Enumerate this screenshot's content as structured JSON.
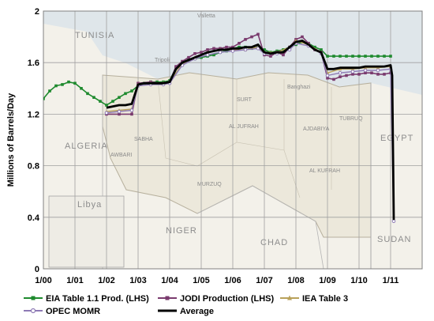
{
  "chart_data": {
    "type": "line",
    "title": "",
    "xlabel": "",
    "ylabel": "Millions of Barrels/Day",
    "x_tick_labels": [
      "1/00",
      "1/01",
      "1/02",
      "1/03",
      "1/04",
      "1/05",
      "1/06",
      "1/07",
      "1/08",
      "1/09",
      "1/10",
      "1/11"
    ],
    "y_tick_labels": [
      "0",
      "0.4",
      "0.8",
      "1.2",
      "1.6",
      "2"
    ],
    "xlim": [
      0,
      12
    ],
    "ylim": [
      0,
      2
    ],
    "grid": true,
    "legend_position": "bottom",
    "series": [
      {
        "name": "EIA Table 1.1 Prod. (LHS)",
        "color": "#1e8a2e",
        "marker": "square",
        "points": [
          [
            0,
            1.32
          ],
          [
            0.2,
            1.38
          ],
          [
            0.4,
            1.42
          ],
          [
            0.6,
            1.43
          ],
          [
            0.8,
            1.45
          ],
          [
            1.0,
            1.44
          ],
          [
            1.2,
            1.4
          ],
          [
            1.4,
            1.36
          ],
          [
            1.6,
            1.33
          ],
          [
            1.8,
            1.3
          ],
          [
            2.0,
            1.27
          ],
          [
            2.2,
            1.3
          ],
          [
            2.4,
            1.33
          ],
          [
            2.6,
            1.36
          ],
          [
            2.8,
            1.38
          ],
          [
            3.0,
            1.42
          ],
          [
            3.2,
            1.44
          ],
          [
            3.4,
            1.45
          ],
          [
            3.6,
            1.45
          ],
          [
            3.8,
            1.45
          ],
          [
            4.0,
            1.46
          ],
          [
            4.2,
            1.56
          ],
          [
            4.4,
            1.6
          ],
          [
            4.6,
            1.62
          ],
          [
            4.8,
            1.63
          ],
          [
            5.0,
            1.64
          ],
          [
            5.2,
            1.65
          ],
          [
            5.4,
            1.66
          ],
          [
            5.6,
            1.68
          ],
          [
            5.8,
            1.69
          ],
          [
            6.0,
            1.71
          ],
          [
            6.2,
            1.72
          ],
          [
            6.4,
            1.72
          ],
          [
            6.6,
            1.71
          ],
          [
            6.8,
            1.72
          ],
          [
            7.0,
            1.7
          ],
          [
            7.2,
            1.68
          ],
          [
            7.4,
            1.69
          ],
          [
            7.6,
            1.7
          ],
          [
            7.8,
            1.72
          ],
          [
            8.0,
            1.74
          ],
          [
            8.2,
            1.76
          ],
          [
            8.4,
            1.75
          ],
          [
            8.6,
            1.72
          ],
          [
            8.8,
            1.7
          ],
          [
            9.0,
            1.65
          ],
          [
            9.2,
            1.65
          ],
          [
            9.4,
            1.65
          ],
          [
            9.6,
            1.65
          ],
          [
            9.8,
            1.65
          ],
          [
            10.0,
            1.65
          ],
          [
            10.2,
            1.65
          ],
          [
            10.4,
            1.65
          ],
          [
            10.6,
            1.65
          ],
          [
            10.8,
            1.65
          ],
          [
            11.0,
            1.65
          ]
        ]
      },
      {
        "name": "JODI Production (LHS)",
        "color": "#7a3b6e",
        "marker": "square",
        "points": [
          [
            2.0,
            1.2
          ],
          [
            2.4,
            1.2
          ],
          [
            2.8,
            1.2
          ],
          [
            3.0,
            1.44
          ],
          [
            3.4,
            1.45
          ],
          [
            3.8,
            1.44
          ],
          [
            4.0,
            1.45
          ],
          [
            4.2,
            1.57
          ],
          [
            4.4,
            1.61
          ],
          [
            4.6,
            1.64
          ],
          [
            4.8,
            1.67
          ],
          [
            5.0,
            1.68
          ],
          [
            5.2,
            1.7
          ],
          [
            5.4,
            1.71
          ],
          [
            5.6,
            1.71
          ],
          [
            5.8,
            1.72
          ],
          [
            6.0,
            1.72
          ],
          [
            6.2,
            1.75
          ],
          [
            6.4,
            1.78
          ],
          [
            6.6,
            1.8
          ],
          [
            6.8,
            1.82
          ],
          [
            7.0,
            1.66
          ],
          [
            7.2,
            1.65
          ],
          [
            7.4,
            1.68
          ],
          [
            7.6,
            1.66
          ],
          [
            7.8,
            1.72
          ],
          [
            8.0,
            1.78
          ],
          [
            8.2,
            1.8
          ],
          [
            8.4,
            1.75
          ],
          [
            8.6,
            1.7
          ],
          [
            8.8,
            1.68
          ],
          [
            9.0,
            1.48
          ],
          [
            9.2,
            1.47
          ],
          [
            9.4,
            1.49
          ],
          [
            9.6,
            1.5
          ],
          [
            9.8,
            1.51
          ],
          [
            10.0,
            1.51
          ],
          [
            10.2,
            1.52
          ],
          [
            10.4,
            1.52
          ],
          [
            10.6,
            1.51
          ],
          [
            10.8,
            1.51
          ],
          [
            11.0,
            1.52
          ]
        ]
      },
      {
        "name": "IEA Table 3",
        "color": "#b9a15a",
        "marker": "triangle",
        "points": [
          [
            2.0,
            1.22
          ],
          [
            2.4,
            1.23
          ],
          [
            2.8,
            1.24
          ],
          [
            3.0,
            1.43
          ],
          [
            3.4,
            1.44
          ],
          [
            3.8,
            1.44
          ],
          [
            4.0,
            1.45
          ],
          [
            4.4,
            1.59
          ],
          [
            4.8,
            1.64
          ],
          [
            5.2,
            1.68
          ],
          [
            5.6,
            1.7
          ],
          [
            6.0,
            1.7
          ],
          [
            6.4,
            1.7
          ],
          [
            6.8,
            1.72
          ],
          [
            7.0,
            1.68
          ],
          [
            7.4,
            1.68
          ],
          [
            7.8,
            1.72
          ],
          [
            8.0,
            1.77
          ],
          [
            8.4,
            1.74
          ],
          [
            8.8,
            1.68
          ],
          [
            9.0,
            1.52
          ],
          [
            9.4,
            1.55
          ],
          [
            9.8,
            1.55
          ],
          [
            10.2,
            1.56
          ],
          [
            10.6,
            1.56
          ],
          [
            11.0,
            1.57
          ]
        ]
      },
      {
        "name": "OPEC MOMR",
        "color": "#8e7ab5",
        "marker": "circle",
        "points": [
          [
            2.0,
            1.21
          ],
          [
            2.4,
            1.22
          ],
          [
            2.8,
            1.23
          ],
          [
            3.0,
            1.42
          ],
          [
            3.4,
            1.43
          ],
          [
            3.8,
            1.43
          ],
          [
            4.0,
            1.44
          ],
          [
            4.4,
            1.58
          ],
          [
            4.8,
            1.63
          ],
          [
            5.2,
            1.66
          ],
          [
            5.6,
            1.68
          ],
          [
            6.0,
            1.69
          ],
          [
            6.4,
            1.7
          ],
          [
            6.8,
            1.71
          ],
          [
            7.0,
            1.67
          ],
          [
            7.4,
            1.67
          ],
          [
            7.8,
            1.7
          ],
          [
            8.0,
            1.75
          ],
          [
            8.4,
            1.73
          ],
          [
            8.8,
            1.67
          ],
          [
            9.0,
            1.5
          ],
          [
            9.4,
            1.52
          ],
          [
            9.8,
            1.53
          ],
          [
            10.2,
            1.54
          ],
          [
            10.6,
            1.54
          ],
          [
            11.0,
            1.55
          ],
          [
            11.1,
            0.37
          ]
        ]
      },
      {
        "name": "Average",
        "color": "#000000",
        "marker": "none",
        "points": [
          [
            2.0,
            1.25
          ],
          [
            2.2,
            1.26
          ],
          [
            2.4,
            1.27
          ],
          [
            2.6,
            1.27
          ],
          [
            2.8,
            1.28
          ],
          [
            3.0,
            1.43
          ],
          [
            3.2,
            1.44
          ],
          [
            3.4,
            1.44
          ],
          [
            3.6,
            1.44
          ],
          [
            3.8,
            1.44
          ],
          [
            4.0,
            1.45
          ],
          [
            4.2,
            1.55
          ],
          [
            4.4,
            1.6
          ],
          [
            4.6,
            1.62
          ],
          [
            4.8,
            1.64
          ],
          [
            5.0,
            1.66
          ],
          [
            5.2,
            1.68
          ],
          [
            5.4,
            1.69
          ],
          [
            5.6,
            1.7
          ],
          [
            5.8,
            1.7
          ],
          [
            6.0,
            1.71
          ],
          [
            6.2,
            1.71
          ],
          [
            6.4,
            1.72
          ],
          [
            6.6,
            1.72
          ],
          [
            6.8,
            1.74
          ],
          [
            7.0,
            1.68
          ],
          [
            7.2,
            1.67
          ],
          [
            7.4,
            1.68
          ],
          [
            7.6,
            1.68
          ],
          [
            7.8,
            1.72
          ],
          [
            8.0,
            1.76
          ],
          [
            8.2,
            1.77
          ],
          [
            8.4,
            1.74
          ],
          [
            8.6,
            1.7
          ],
          [
            8.8,
            1.68
          ],
          [
            9.0,
            1.55
          ],
          [
            9.2,
            1.55
          ],
          [
            9.4,
            1.56
          ],
          [
            9.6,
            1.56
          ],
          [
            9.8,
            1.56
          ],
          [
            10.0,
            1.56
          ],
          [
            10.2,
            1.57
          ],
          [
            10.4,
            1.57
          ],
          [
            10.6,
            1.57
          ],
          [
            10.8,
            1.57
          ],
          [
            11.0,
            1.58
          ],
          [
            11.05,
            1.5
          ],
          [
            11.1,
            0.38
          ]
        ]
      }
    ],
    "map_labels": [
      "TUNISIA",
      "ALGERIA",
      "AL JUFRAH",
      "MURZUQ",
      "NIGER",
      "CHAD",
      "SUDAN",
      "EGYPT",
      "AL KUFRAH",
      "AJDABIYA",
      "TUBRUQ",
      "SURT",
      "SABHA",
      "AWBARI",
      "Libya",
      "Tripoli",
      "Banghazi",
      "Valletta"
    ]
  }
}
